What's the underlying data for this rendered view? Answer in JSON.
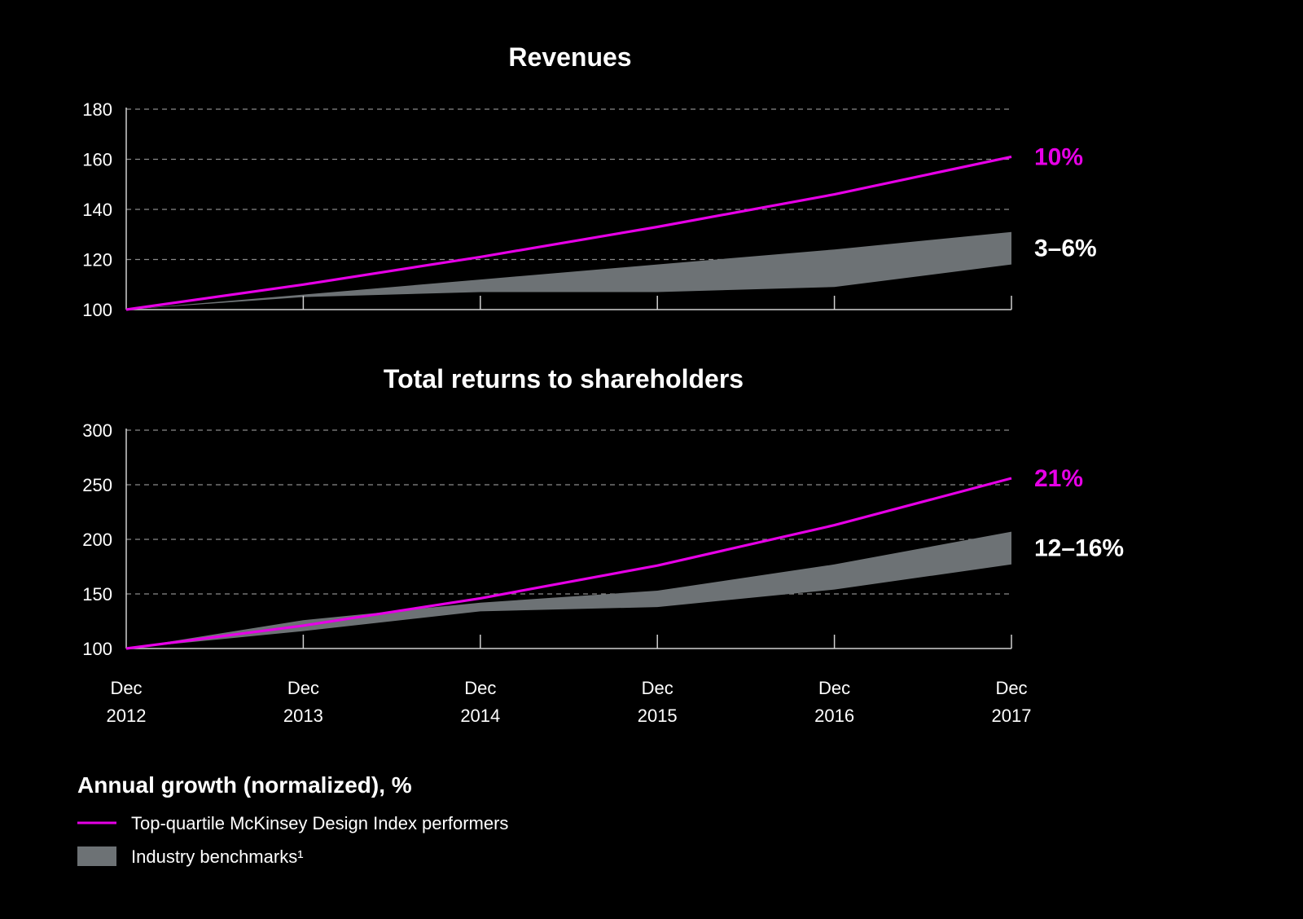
{
  "colors": {
    "background": "#000000",
    "top_quartile": "#e600e6",
    "benchmark": "#6d7275",
    "grid": "#8a8a8a",
    "text": "#ffffff"
  },
  "x_labels": [
    {
      "month": "Dec",
      "year": "2012"
    },
    {
      "month": "Dec",
      "year": "2013"
    },
    {
      "month": "Dec",
      "year": "2014"
    },
    {
      "month": "Dec",
      "year": "2015"
    },
    {
      "month": "Dec",
      "year": "2016"
    },
    {
      "month": "Dec",
      "year": "2017"
    }
  ],
  "chart_data": [
    {
      "type": "line",
      "title": "Revenues",
      "x": [
        "Dec 2012",
        "Dec 2013",
        "Dec 2014",
        "Dec 2015",
        "Dec 2016",
        "Dec 2017"
      ],
      "ylim": [
        100,
        180
      ],
      "yticks": [
        100,
        120,
        140,
        160,
        180
      ],
      "grid": true,
      "series": [
        {
          "key": "top_quartile",
          "type": "line",
          "values": [
            100,
            110,
            121,
            133,
            146,
            161
          ],
          "end_label": "10%"
        },
        {
          "key": "benchmarks",
          "type": "band",
          "upper": [
            100,
            106,
            112,
            118,
            124,
            131
          ],
          "lower": [
            100,
            105,
            107,
            107,
            109,
            118
          ],
          "end_label": "3–6%"
        }
      ]
    },
    {
      "type": "line",
      "title": "Total returns to shareholders",
      "x": [
        "Dec 2012",
        "Dec 2013",
        "Dec 2014",
        "Dec 2015",
        "Dec 2016",
        "Dec 2017"
      ],
      "ylim": [
        100,
        300
      ],
      "yticks": [
        100,
        150,
        200,
        250,
        300
      ],
      "grid": true,
      "series": [
        {
          "key": "top_quartile",
          "type": "line",
          "values": [
            100,
            121,
            146,
            176,
            213,
            256
          ],
          "end_label": "21%"
        },
        {
          "key": "benchmarks",
          "type": "band",
          "upper": [
            100,
            126,
            142,
            153,
            177,
            207
          ],
          "lower": [
            100,
            116,
            134,
            138,
            154,
            177
          ],
          "end_label": "12–16%"
        }
      ]
    }
  ],
  "legend": {
    "title": "Annual growth (normalized), %",
    "items": [
      {
        "key": "top_quartile",
        "kind": "line",
        "label": "Top-quartile McKinsey Design Index performers"
      },
      {
        "key": "benchmarks",
        "kind": "swatch",
        "label": "Industry benchmarks¹"
      }
    ]
  }
}
